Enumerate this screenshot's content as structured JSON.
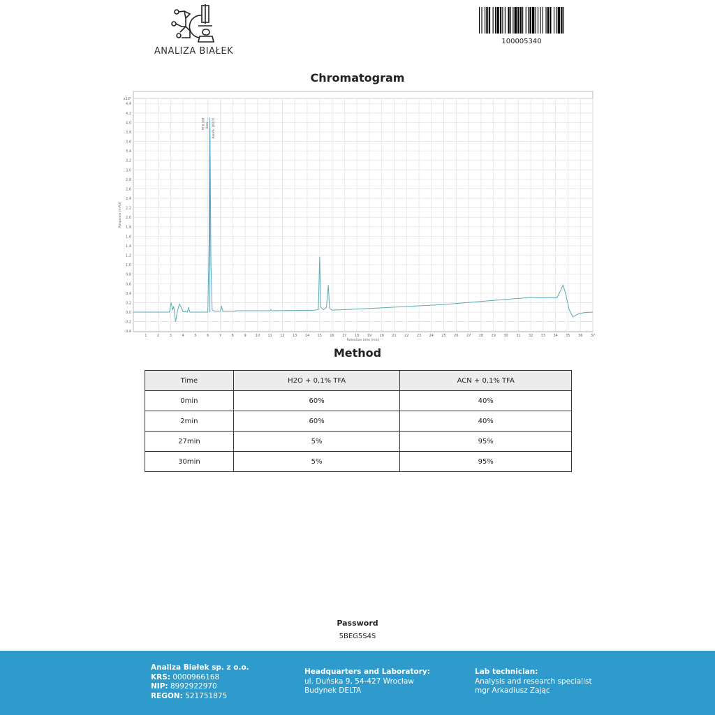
{
  "header": {
    "logo_text": "ANALIZA BIAŁEK",
    "barcode_number": "100005340"
  },
  "chart_title": "Chromatogram",
  "chart_data": {
    "type": "line",
    "xlabel": "Retention time [min]",
    "ylabel": "Response [mAU]",
    "y_multiplier": "x10³",
    "xlim": [
      0,
      37
    ],
    "ylim": [
      -0.4,
      4.4
    ],
    "x_ticks": [
      1,
      2,
      3,
      4,
      5,
      6,
      7,
      8,
      9,
      10,
      11,
      12,
      13,
      14,
      15,
      16,
      17,
      18,
      19,
      20,
      21,
      22,
      23,
      24,
      25,
      26,
      27,
      28,
      29,
      30,
      31,
      32,
      33,
      34,
      35,
      36,
      37
    ],
    "y_ticks": [
      "-0,4",
      "-0,2",
      "0,0",
      "0,2",
      "0,4",
      "0,6",
      "0,8",
      "1,0",
      "1,2",
      "1,4",
      "1,6",
      "1,8",
      "2,0",
      "2,2",
      "2,4",
      "2,6",
      "2,8",
      "3,0",
      "3,2",
      "3,4",
      "3,6",
      "3,8",
      "4,0",
      "4,2",
      "4,4"
    ],
    "grid": true,
    "line_color": "#5aaab0",
    "peak_annotation": {
      "rt": 6.168,
      "lines": [
        "RT 6.168",
        "Area: ...",
        "Area%: 100.00"
      ]
    },
    "series": [
      {
        "points": [
          [
            0,
            0
          ],
          [
            2.9,
            0
          ],
          [
            3.05,
            0.2
          ],
          [
            3.15,
            0.05
          ],
          [
            3.25,
            0.12
          ],
          [
            3.4,
            -0.2
          ],
          [
            3.55,
            0.02
          ],
          [
            3.7,
            0.17
          ],
          [
            3.85,
            0.1
          ],
          [
            4.0,
            0.01
          ],
          [
            4.35,
            0
          ],
          [
            4.45,
            0.1
          ],
          [
            4.55,
            0
          ],
          [
            6.0,
            0
          ],
          [
            6.1,
            1.5
          ],
          [
            6.17,
            3.9
          ],
          [
            6.25,
            1.0
          ],
          [
            6.35,
            0.05
          ],
          [
            6.5,
            0.02
          ],
          [
            7.0,
            0.02
          ],
          [
            7.1,
            0.12
          ],
          [
            7.2,
            0.02
          ],
          [
            8.2,
            0.02
          ],
          [
            8.3,
            0.03
          ],
          [
            11,
            0.03
          ],
          [
            11.05,
            0.05
          ],
          [
            11.15,
            0.03
          ],
          [
            14.5,
            0.04
          ],
          [
            14.9,
            0.05
          ],
          [
            15.0,
            1.17
          ],
          [
            15.1,
            0.1
          ],
          [
            15.3,
            0.05
          ],
          [
            15.55,
            0.1
          ],
          [
            15.7,
            0.57
          ],
          [
            15.8,
            0.08
          ],
          [
            16,
            0.04
          ],
          [
            20,
            0.09
          ],
          [
            25,
            0.16
          ],
          [
            30,
            0.27
          ],
          [
            32,
            0.31
          ],
          [
            33,
            0.3
          ],
          [
            34.1,
            0.3
          ],
          [
            34.4,
            0.45
          ],
          [
            34.6,
            0.57
          ],
          [
            34.8,
            0.4
          ],
          [
            35.1,
            0.05
          ],
          [
            35.4,
            -0.1
          ],
          [
            35.8,
            -0.04
          ],
          [
            36.3,
            -0.01
          ],
          [
            37,
            0
          ]
        ]
      }
    ]
  },
  "method_title": "Method",
  "method_table": {
    "headers": [
      "Time",
      "H2O + 0,1% TFA",
      "ACN + 0,1% TFA"
    ],
    "rows": [
      [
        "0min",
        "60%",
        "40%"
      ],
      [
        "2min",
        "60%",
        "40%"
      ],
      [
        "27min",
        "5%",
        "95%"
      ],
      [
        "30min",
        "5%",
        "95%"
      ]
    ]
  },
  "password": {
    "label": "Password",
    "value": "5BEG5S4S"
  },
  "footer": {
    "company": "Analiza Białek sp. z o.o.",
    "krs_label": "KRS:",
    "krs": "0000966168",
    "nip_label": "NIP:",
    "nip": "8992922970",
    "regon_label": "REGON:",
    "regon": "521751875",
    "hq_title": "Headquarters and Laboratory:",
    "hq_line1": "ul. Duńska 9, 54-427 Wrocław",
    "hq_line2": "Budynek DELTA",
    "tech_title": "Lab technician:",
    "tech_line1": "Analysis and research specialist",
    "tech_line2": "mgr Arkadiusz Zając",
    "color": "#2e9bcc"
  }
}
